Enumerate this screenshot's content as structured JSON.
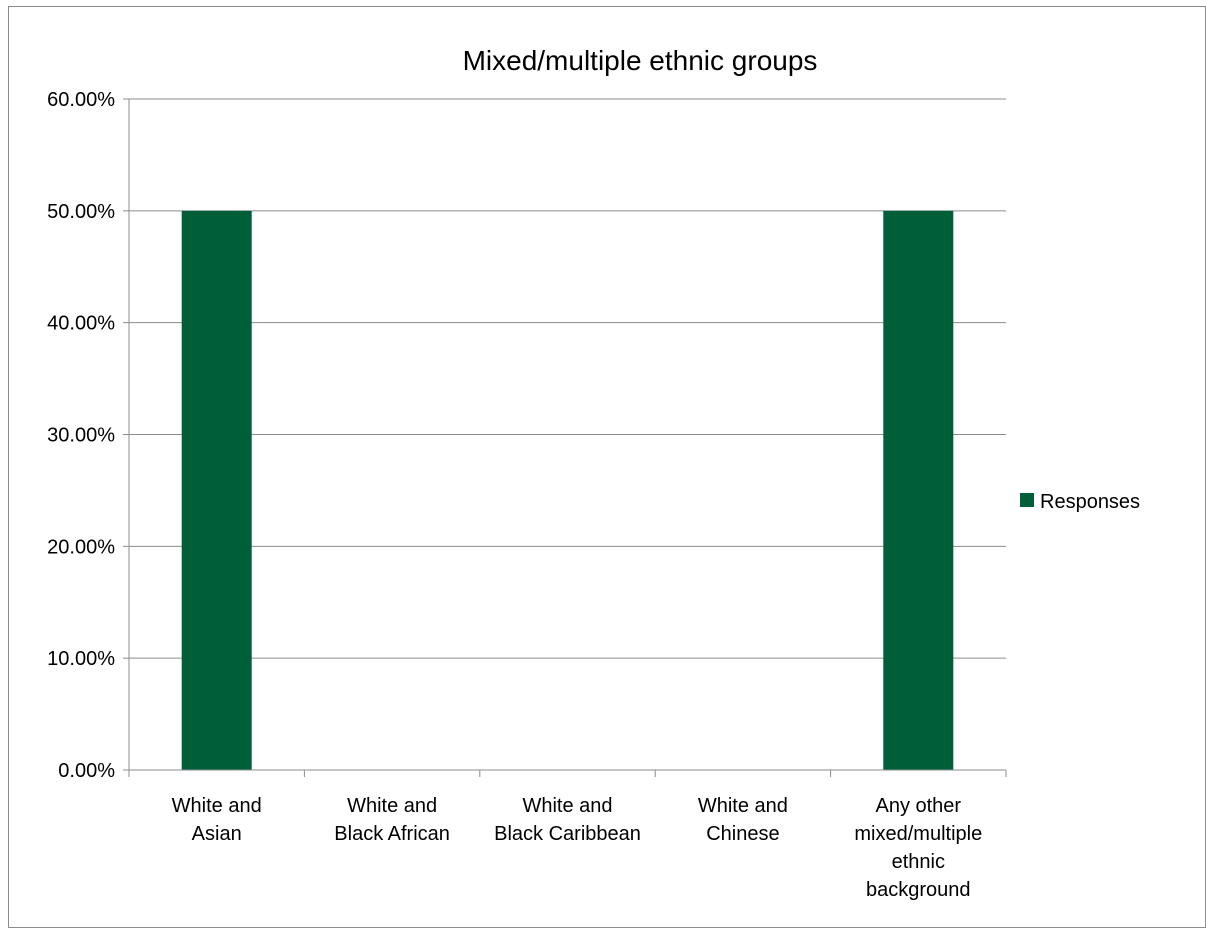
{
  "chart_data": {
    "type": "bar",
    "title": "Mixed/multiple ethnic groups",
    "categories": [
      [
        "White and",
        "Asian"
      ],
      [
        "White and",
        "Black African"
      ],
      [
        "White and",
        "Black Caribbean"
      ],
      [
        "White and",
        "Chinese"
      ],
      [
        "Any other",
        "mixed/multiple",
        "ethnic",
        "background"
      ]
    ],
    "series": [
      {
        "name": "Responses",
        "color": "#005E38",
        "values": [
          50,
          0,
          0,
          0,
          50
        ]
      }
    ],
    "ylim": [
      0,
      60
    ],
    "yticks": [
      0,
      10,
      20,
      30,
      40,
      50,
      60
    ],
    "ytick_labels": [
      "0.00%",
      "10.00%",
      "20.00%",
      "30.00%",
      "40.00%",
      "50.00%",
      "60.00%"
    ],
    "grid": true,
    "legend_position": "right"
  }
}
